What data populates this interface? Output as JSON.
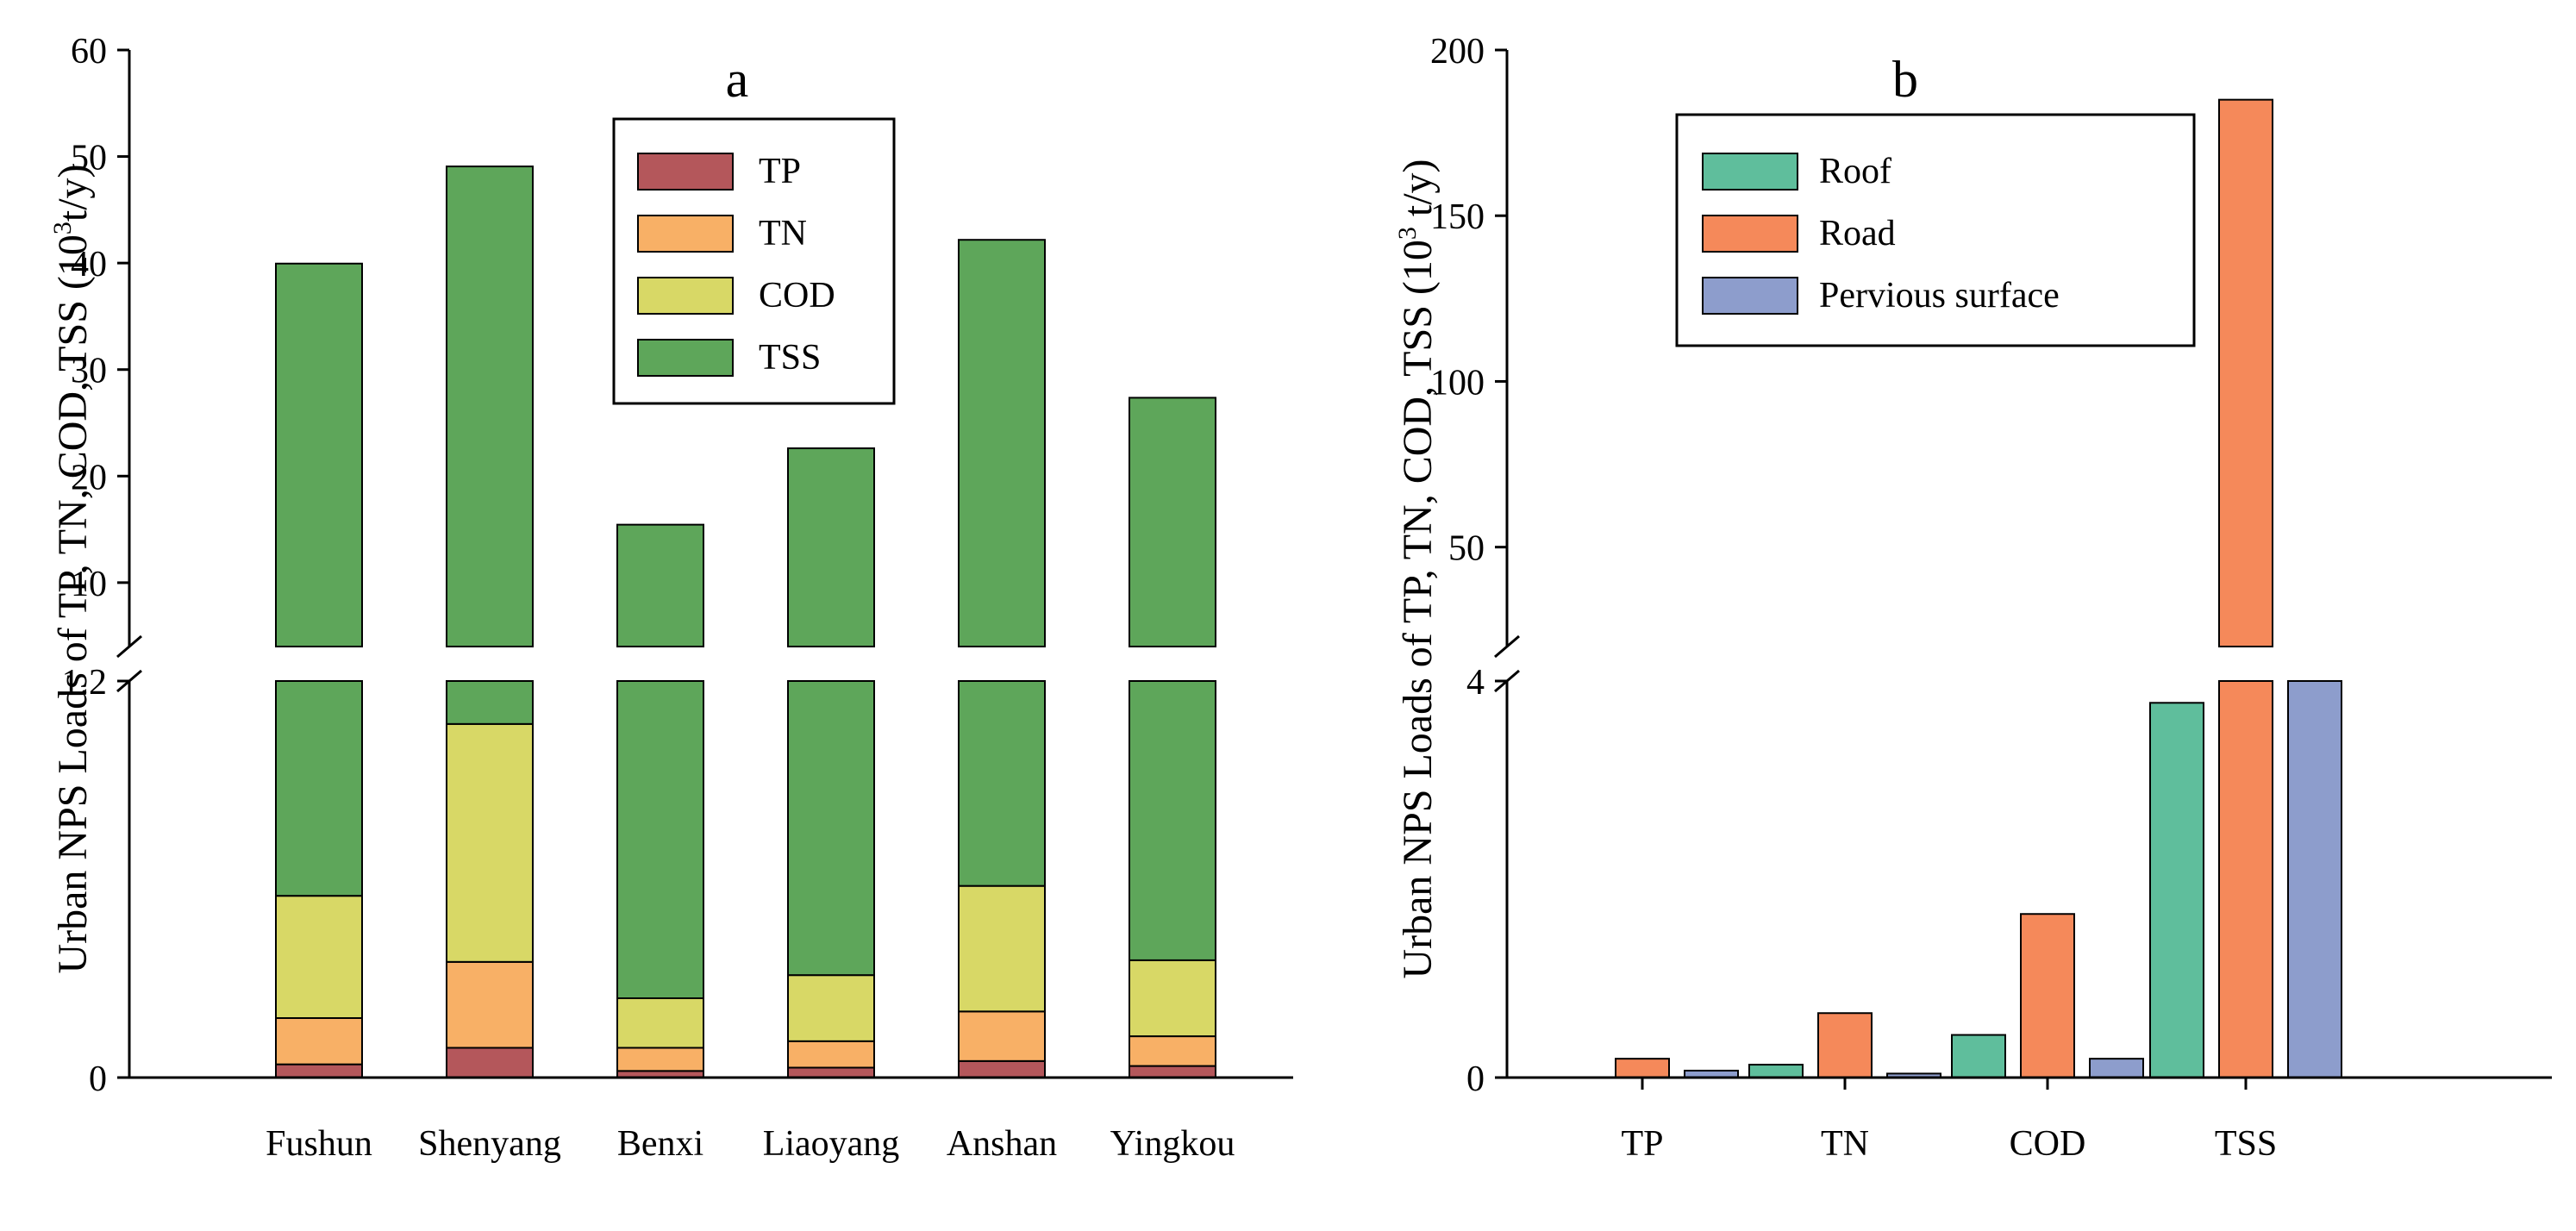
{
  "chart_data": [
    {
      "panel": "a",
      "type": "bar",
      "stacked": true,
      "broken_axis": true,
      "title": "a",
      "ylabel": "Urban NPS Loads of TP, TN, COD, TSS (10^3 t/y)",
      "ylabel_parts": {
        "main": "Urban NPS Loads of TP, TN, COD, TSS (10",
        "exp": "3",
        "tail": "t/y)"
      },
      "xlabel": "",
      "categories": [
        "Fushun",
        "Shenyang",
        "Benxi",
        "Liaoyang",
        "Anshan",
        "Yingkou"
      ],
      "series": [
        {
          "name": "TP",
          "color": "#b4575b",
          "values": [
            0.04,
            0.09,
            0.02,
            0.03,
            0.05,
            0.035
          ]
        },
        {
          "name": "TN",
          "color": "#f8b066",
          "values": [
            0.14,
            0.26,
            0.07,
            0.08,
            0.15,
            0.09
          ]
        },
        {
          "name": "COD",
          "color": "#d8d866",
          "values": [
            0.37,
            0.72,
            0.15,
            0.2,
            0.38,
            0.23
          ]
        },
        {
          "name": "TSS",
          "color": "#5ea65a",
          "values": [
            39.4,
            48.0,
            15.2,
            22.3,
            41.6,
            27.0
          ]
        }
      ],
      "totals": [
        39.95,
        49.07,
        15.44,
        22.61,
        42.18,
        27.355
      ],
      "lower_segment": {
        "ylim": [
          0,
          1.2
        ],
        "ticks": [
          "0",
          "1.2"
        ]
      },
      "upper_segment": {
        "ylim": [
          4,
          60
        ],
        "ticks": [
          "10",
          "20",
          "30",
          "40",
          "50",
          "60"
        ]
      },
      "legend": {
        "position": "top-center",
        "entries": [
          "TP",
          "TN",
          "COD",
          "TSS"
        ]
      }
    },
    {
      "panel": "b",
      "type": "bar",
      "stacked": false,
      "broken_axis": true,
      "title": "b",
      "ylabel": "Urban NPS Loads of TP, TN, COD, TSS (10^3 t/y)",
      "ylabel_parts": {
        "main": "Urban NPS Loads of TP, TN, COD, TSS (10",
        "exp": "3",
        "tail": " t/y)"
      },
      "xlabel": "",
      "categories": [
        "TP",
        "TN",
        "COD",
        "TSS"
      ],
      "series": [
        {
          "name": "Roof",
          "color": "#5fbe9c",
          "values": [
            0.0,
            0.13,
            0.43,
            3.78
          ]
        },
        {
          "name": "Road",
          "color": "#f5895a",
          "values": [
            0.19,
            0.65,
            1.65,
            185.0
          ]
        },
        {
          "name": "Pervious surface",
          "color": "#8d9dcc",
          "values": [
            0.07,
            0.04,
            0.19,
            5.0
          ]
        }
      ],
      "lower_segment": {
        "ylim": [
          0,
          4
        ],
        "ticks": [
          "0",
          "4"
        ]
      },
      "upper_segment": {
        "ylim": [
          20,
          200
        ],
        "ticks": [
          "50",
          "100",
          "150",
          "200"
        ]
      },
      "legend": {
        "position": "top-left",
        "entries": [
          "Roof",
          "Road",
          "Pervious surface"
        ]
      }
    }
  ]
}
